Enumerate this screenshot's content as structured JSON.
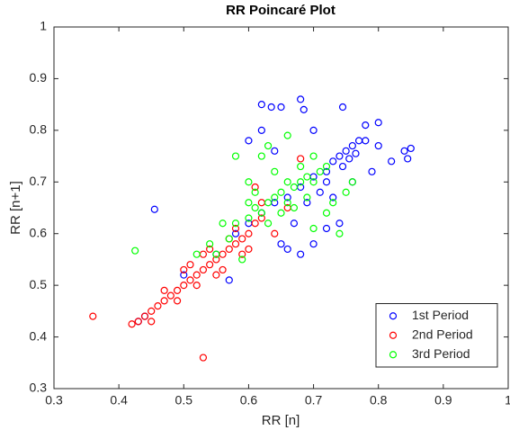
{
  "chart_data": {
    "type": "scatter",
    "title": "RR Poincaré Plot",
    "x_label": "RR [n]",
    "y_label": "RR [n+1]",
    "xlim": [
      0.3,
      1
    ],
    "ylim": [
      0.3,
      1
    ],
    "xticks": [
      0.3,
      0.4,
      0.5,
      0.6,
      0.7,
      0.8,
      0.9,
      1
    ],
    "yticks": [
      0.3,
      0.4,
      0.5,
      0.6,
      0.7,
      0.8,
      0.9,
      1
    ],
    "legend": "lower right",
    "series": [
      {
        "name": "1st Period",
        "color": "#0000ff",
        "x": [
          0.455,
          0.43,
          0.44,
          0.5,
          0.55,
          0.58,
          0.6,
          0.62,
          0.64,
          0.66,
          0.68,
          0.7,
          0.72,
          0.73,
          0.74,
          0.75,
          0.76,
          0.77,
          0.78,
          0.745,
          0.755,
          0.765,
          0.72,
          0.71,
          0.69,
          0.67,
          0.65,
          0.7,
          0.72,
          0.74,
          0.62,
          0.635,
          0.65,
          0.68,
          0.685,
          0.745,
          0.78,
          0.8,
          0.84,
          0.85,
          0.845,
          0.62,
          0.64,
          0.6,
          0.66,
          0.68,
          0.57,
          0.8,
          0.82,
          0.76,
          0.7,
          0.73,
          0.79
        ],
        "values": [
          0.647,
          0.43,
          0.44,
          0.52,
          0.56,
          0.6,
          0.62,
          0.64,
          0.66,
          0.67,
          0.69,
          0.71,
          0.72,
          0.74,
          0.75,
          0.76,
          0.77,
          0.78,
          0.78,
          0.73,
          0.745,
          0.755,
          0.7,
          0.68,
          0.66,
          0.62,
          0.58,
          0.58,
          0.61,
          0.62,
          0.85,
          0.845,
          0.845,
          0.86,
          0.84,
          0.845,
          0.81,
          0.815,
          0.76,
          0.765,
          0.745,
          0.8,
          0.76,
          0.78,
          0.57,
          0.56,
          0.51,
          0.77,
          0.74,
          0.7,
          0.8,
          0.67,
          0.72
        ]
      },
      {
        "name": "2nd Period",
        "color": "#ff0000",
        "x": [
          0.36,
          0.53,
          0.42,
          0.43,
          0.44,
          0.45,
          0.46,
          0.47,
          0.48,
          0.49,
          0.5,
          0.51,
          0.52,
          0.53,
          0.54,
          0.55,
          0.56,
          0.57,
          0.58,
          0.59,
          0.6,
          0.61,
          0.62,
          0.5,
          0.52,
          0.54,
          0.56,
          0.58,
          0.6,
          0.62,
          0.61,
          0.47,
          0.49,
          0.53,
          0.55,
          0.57,
          0.59,
          0.68,
          0.64,
          0.66,
          0.45,
          0.51
        ],
        "values": [
          0.44,
          0.36,
          0.425,
          0.43,
          0.44,
          0.45,
          0.46,
          0.47,
          0.48,
          0.49,
          0.5,
          0.51,
          0.52,
          0.53,
          0.54,
          0.55,
          0.56,
          0.57,
          0.58,
          0.59,
          0.6,
          0.62,
          0.63,
          0.53,
          0.5,
          0.57,
          0.53,
          0.61,
          0.57,
          0.66,
          0.69,
          0.49,
          0.47,
          0.56,
          0.52,
          0.59,
          0.56,
          0.745,
          0.6,
          0.65,
          0.43,
          0.54
        ]
      },
      {
        "name": "3rd Period",
        "color": "#00ff00",
        "x": [
          0.425,
          0.52,
          0.55,
          0.57,
          0.58,
          0.6,
          0.61,
          0.62,
          0.63,
          0.64,
          0.65,
          0.66,
          0.67,
          0.68,
          0.69,
          0.7,
          0.71,
          0.72,
          0.63,
          0.65,
          0.67,
          0.69,
          0.62,
          0.63,
          0.66,
          0.6,
          0.58,
          0.61,
          0.54,
          0.56,
          0.73,
          0.75,
          0.76,
          0.74,
          0.7,
          0.72,
          0.68,
          0.7,
          0.64,
          0.59,
          0.6,
          0.66
        ],
        "values": [
          0.567,
          0.56,
          0.56,
          0.59,
          0.62,
          0.63,
          0.65,
          0.64,
          0.66,
          0.67,
          0.68,
          0.66,
          0.69,
          0.7,
          0.71,
          0.7,
          0.72,
          0.73,
          0.62,
          0.64,
          0.65,
          0.67,
          0.75,
          0.77,
          0.79,
          0.7,
          0.75,
          0.68,
          0.58,
          0.62,
          0.66,
          0.68,
          0.7,
          0.6,
          0.61,
          0.64,
          0.73,
          0.75,
          0.72,
          0.55,
          0.66,
          0.7
        ]
      }
    ]
  }
}
